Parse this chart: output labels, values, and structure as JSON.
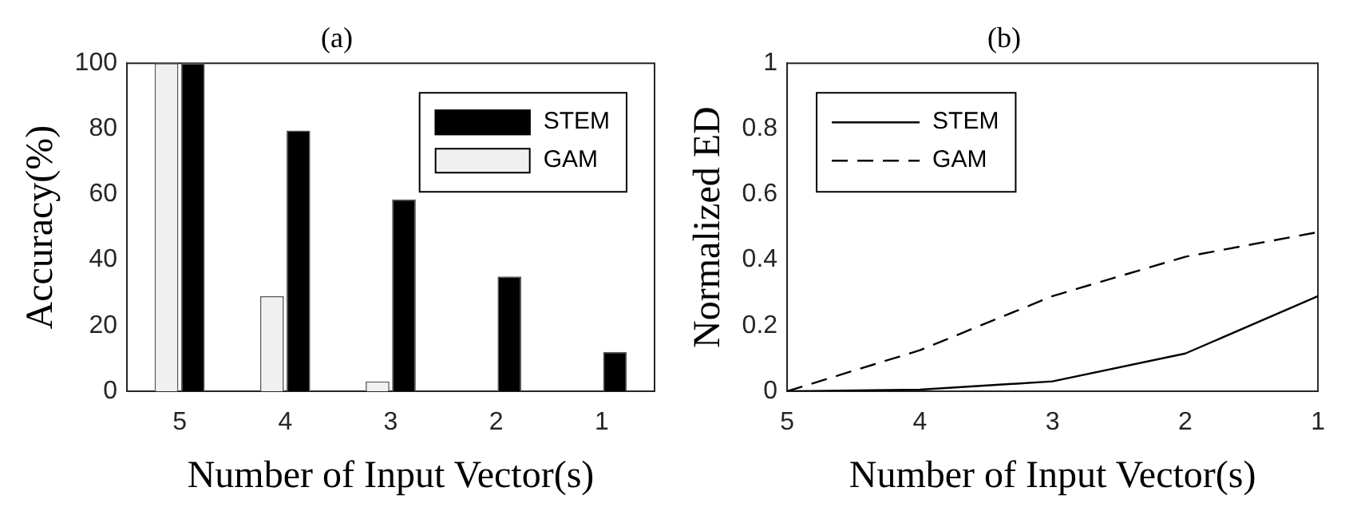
{
  "chart_data": [
    {
      "type": "bar",
      "title": "(a)",
      "xlabel": "Number of Input Vector(s)",
      "ylabel": "Accuracy(%)",
      "categories": [
        "5",
        "4",
        "3",
        "2",
        "1"
      ],
      "series": [
        {
          "name": "GAM",
          "color": "#f0f0f0",
          "values": [
            100,
            29,
            3,
            0,
            0
          ]
        },
        {
          "name": "STEM",
          "color": "#000000",
          "values": [
            100,
            79.5,
            58.5,
            35,
            12
          ]
        }
      ],
      "ylim": [
        0,
        100
      ],
      "yticks": [
        0,
        20,
        40,
        60,
        80,
        100
      ],
      "grid": false,
      "legend": "top right"
    },
    {
      "type": "line",
      "title": "(b)",
      "xlabel": "Number of Input Vector(s)",
      "ylabel": "Normalized ED",
      "x": [
        5,
        4,
        3,
        2,
        1
      ],
      "series": [
        {
          "name": "STEM",
          "color": "#000000",
          "line_style": "solid",
          "values": [
            0,
            0.005,
            0.03,
            0.115,
            0.29
          ]
        },
        {
          "name": "GAM",
          "color": "#000000",
          "line_style": "dashed",
          "values": [
            0,
            0.125,
            0.29,
            0.41,
            0.485
          ]
        }
      ],
      "xlim": [
        5,
        1
      ],
      "xticks": [
        5,
        4,
        3,
        2,
        1
      ],
      "ylim": [
        0,
        1
      ],
      "yticks": [
        0,
        0.2,
        0.4,
        0.6,
        0.8,
        1
      ],
      "grid": false,
      "legend": "top left",
      "marker": "none"
    }
  ]
}
